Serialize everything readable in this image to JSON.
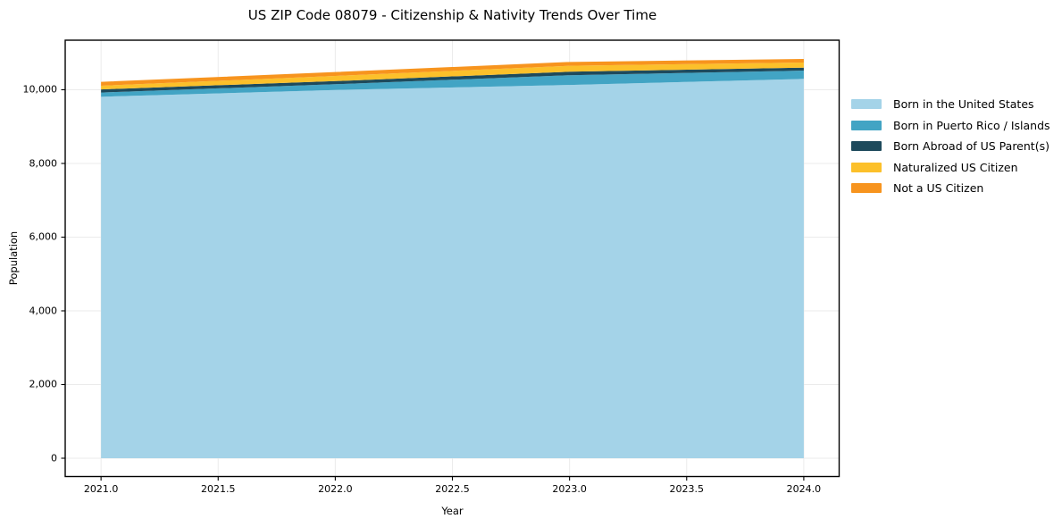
{
  "chart_data": {
    "type": "area",
    "stacked": true,
    "title": "US ZIP Code 08079 - Citizenship & Nativity Trends Over Time",
    "xlabel": "Year",
    "ylabel": "Population",
    "x": [
      2021,
      2022,
      2023,
      2024
    ],
    "series": [
      {
        "name": "Born in the United States",
        "color": "#A4D3E8",
        "values": [
          9810,
          9995,
          10130,
          10295
        ]
      },
      {
        "name": "Born in Puerto Rico / Islands",
        "color": "#42A4C4",
        "values": [
          115,
          155,
          265,
          225
        ]
      },
      {
        "name": "Born Abroad of US Parent(s)",
        "color": "#1E4A5C",
        "values": [
          85,
          85,
          95,
          80
        ]
      },
      {
        "name": "Naturalized US Citizen",
        "color": "#FCC02A",
        "values": [
          100,
          140,
          160,
          140
        ]
      },
      {
        "name": "Not a US Citizen",
        "color": "#F7941E",
        "values": [
          105,
          105,
          105,
          95
        ]
      }
    ],
    "xticks": {
      "values": [
        2021.0,
        2021.5,
        2022.0,
        2022.5,
        2023.0,
        2023.5,
        2024.0
      ],
      "labels": [
        "2021.0",
        "2021.5",
        "2022.0",
        "2022.5",
        "2023.0",
        "2023.5",
        "2024.0"
      ]
    },
    "yticks": {
      "values": [
        0,
        2000,
        4000,
        6000,
        8000,
        10000
      ],
      "labels": [
        "0",
        "2,000",
        "4,000",
        "6,000",
        "8,000",
        "10,000"
      ]
    },
    "xlim": [
      2020.847,
      2024.151
    ],
    "ylim": [
      -497,
      11345
    ],
    "grid": true,
    "grid_color": "#ebebeb",
    "axis_color": "#000000",
    "legend_position": "right of plot, frameless"
  }
}
